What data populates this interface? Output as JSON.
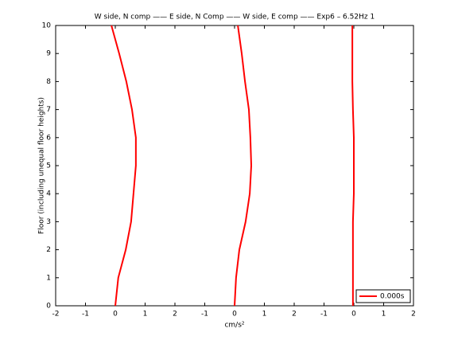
{
  "chart_data": [
    {
      "type": "line",
      "title": "W side, N comp —— E side, N Comp —— W side, E comp —— Exp6 – 6.52Hz 1",
      "ylabel": "Floor (including unequal floor heights)",
      "xlabel": "cm/s²",
      "legend": "lower right",
      "floors": [
        0,
        1,
        2,
        3,
        4,
        5,
        6,
        7,
        8,
        9,
        10
      ],
      "ylim": [
        0,
        10
      ],
      "yticks": [
        0,
        1,
        2,
        3,
        4,
        5,
        6,
        7,
        8,
        9,
        10
      ],
      "xlim": [
        -2,
        2
      ],
      "xticks": [
        -2,
        -1,
        0,
        1,
        2
      ],
      "series": [
        {
          "name": "0.000s",
          "color": "#ff0000",
          "values": [
            0,
            0.1,
            0.35,
            0.53,
            0.61,
            0.69,
            0.69,
            0.56,
            0.37,
            0.13,
            -0.13
          ]
        }
      ]
    },
    {
      "type": "line",
      "floors": [
        0,
        1,
        2,
        3,
        4,
        5,
        6,
        7,
        8,
        9,
        10
      ],
      "xlim": [
        -2,
        2
      ],
      "xticks": [
        -1,
        0,
        1,
        2
      ],
      "series": [
        {
          "color": "#ff0000",
          "values": [
            0,
            0.05,
            0.16,
            0.37,
            0.51,
            0.56,
            0.53,
            0.48,
            0.35,
            0.24,
            0.11
          ]
        }
      ]
    },
    {
      "type": "line",
      "floors": [
        0,
        1,
        2,
        3,
        4,
        5,
        6,
        7,
        8,
        9,
        10
      ],
      "xlim": [
        -2,
        2
      ],
      "xticks": [
        -1,
        0,
        1,
        2
      ],
      "series": [
        {
          "color": "#ff0000",
          "values": [
            -0.03,
            -0.03,
            -0.03,
            -0.03,
            0,
            0,
            0,
            -0.03,
            -0.05,
            -0.05,
            -0.05
          ]
        }
      ]
    }
  ]
}
